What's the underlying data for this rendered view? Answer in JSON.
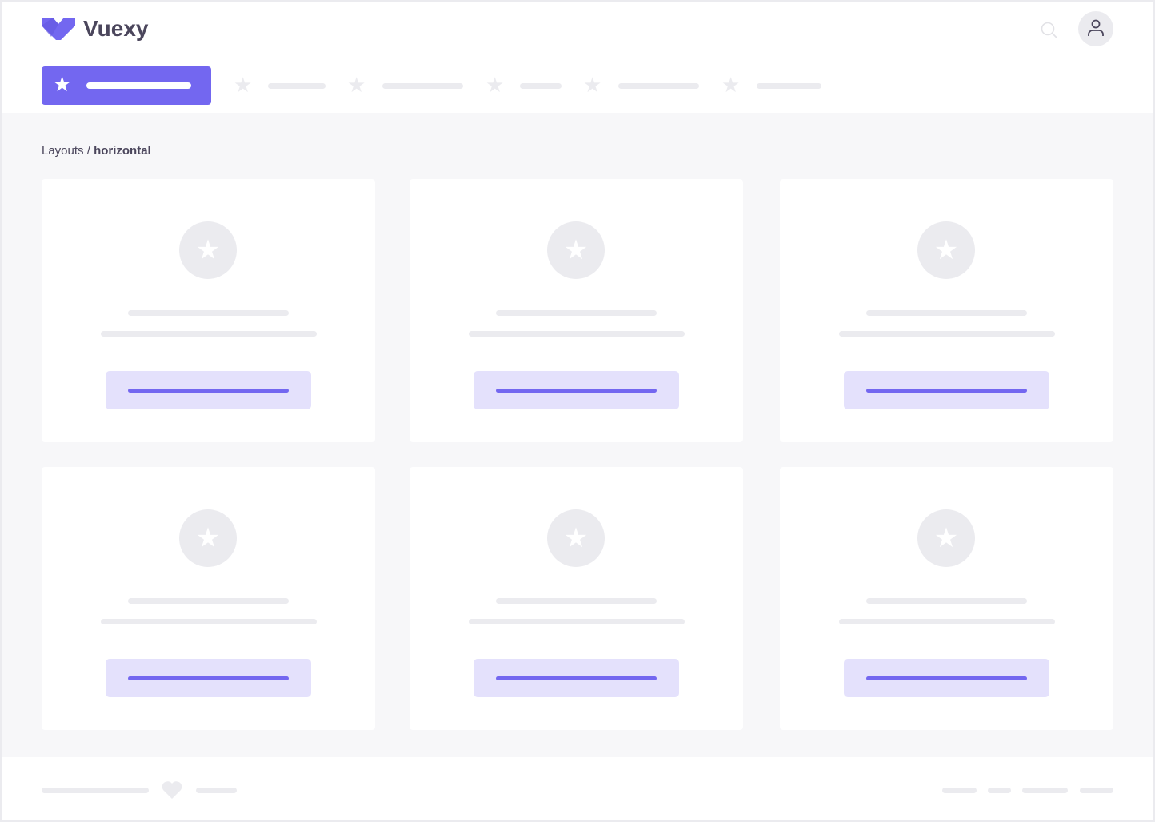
{
  "header": {
    "brand": "Vuexy",
    "logo_icon": "vuexy-logo-icon",
    "search_icon": "search-icon",
    "avatar_icon": "user-icon"
  },
  "nav": {
    "active_icon": "star-icon",
    "item_count": 5
  },
  "breadcrumb": {
    "parent": "Layouts",
    "separator": " / ",
    "current": "horizontal"
  },
  "colors": {
    "primary": "#7367f0",
    "primary_light": "#e4e1fc",
    "placeholder": "#ebebef",
    "background": "#f7f7f9",
    "text": "#4b465c"
  },
  "footer": {
    "icon": "heart-icon"
  }
}
